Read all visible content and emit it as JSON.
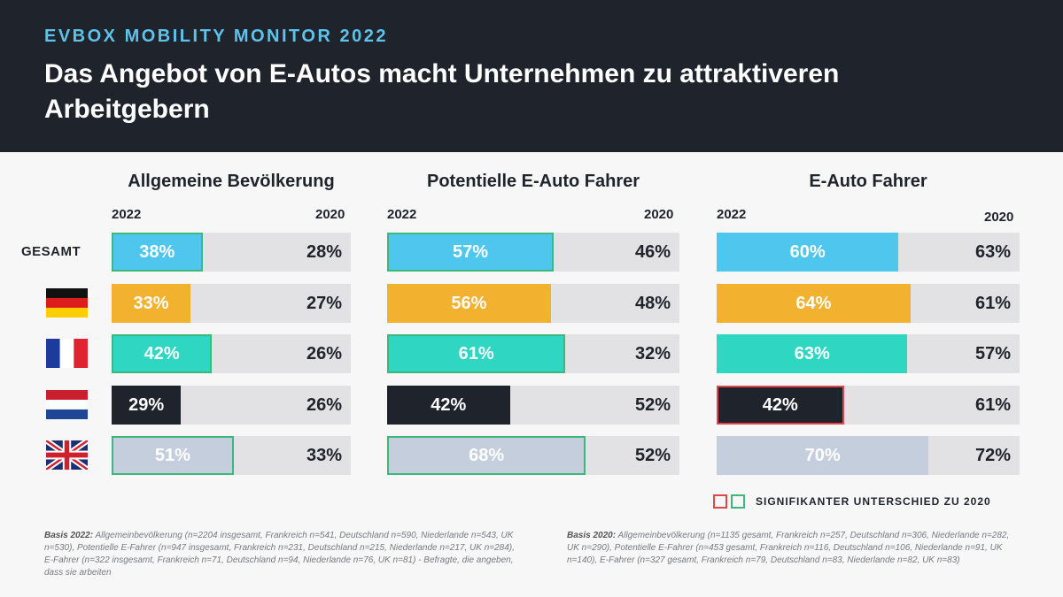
{
  "header": {
    "kicker": "EVBOX MOBILITY MONITOR 2022",
    "title": "Das Angebot von E-Autos macht Unternehmen zu attraktiveren Arbeitgebern"
  },
  "rows": [
    {
      "label": "GESAMT",
      "flag": null
    },
    {
      "label": "",
      "flag": "germany-flag-icon"
    },
    {
      "label": "",
      "flag": "france-flag-icon"
    },
    {
      "label": "",
      "flag": "netherlands-flag-icon"
    },
    {
      "label": "",
      "flag": "uk-flag-icon"
    }
  ],
  "chart_data": {
    "type": "bar",
    "orientation": "horizontal",
    "categories": [
      "GESAMT",
      "Deutschland",
      "Frankreich",
      "Niederlande",
      "UK"
    ],
    "year_current": "2022",
    "year_previous": "2020",
    "panels": [
      {
        "title": "Allgemeine Bevölkerung",
        "values_2022": [
          38,
          33,
          42,
          29,
          51
        ],
        "labels_2022": [
          "38%",
          "33%",
          "42%",
          "29%",
          "51%"
        ],
        "labels_2020": [
          "28%",
          "27%",
          "26%",
          "26%",
          "33%"
        ],
        "significant": [
          "green",
          "none",
          "green",
          "none",
          "green"
        ]
      },
      {
        "title": "Potentielle E-Auto Fahrer",
        "values_2022": [
          57,
          56,
          61,
          42,
          68
        ],
        "labels_2022": [
          "57%",
          "56%",
          "61%",
          "42%",
          "68%"
        ],
        "labels_2020": [
          "46%",
          "48%",
          "32%",
          "52%",
          "52%"
        ],
        "significant": [
          "green",
          "none",
          "green",
          "none",
          "green"
        ]
      },
      {
        "title": "E-Auto Fahrer",
        "values_2022": [
          60,
          64,
          63,
          42,
          70
        ],
        "labels_2022": [
          "60%",
          "64%",
          "63%",
          "42%",
          "70%"
        ],
        "labels_2020": [
          "63%",
          "61%",
          "57%",
          "61%",
          "72%"
        ],
        "significant": [
          "none",
          "none",
          "none",
          "red",
          "none"
        ]
      }
    ],
    "bar_colors": [
      "#4fc6ee",
      "#f2b22f",
      "#2fd7c2",
      "#1f232b",
      "#c5cedd"
    ],
    "bar_text_colors": [
      "#ffffff",
      "#ffffff",
      "#ffffff",
      "#ffffff",
      "#ffffff"
    ],
    "axis_max": 100
  },
  "legend": {
    "red_color": "#e0464a",
    "green_color": "#3db87a",
    "text": "SIGNIFIKANTER UNTERSCHIED ZU 2020"
  },
  "footnotes": {
    "left_bold": "Basis 2022:",
    "left_text": " Allgemeinbevölkerung (n=2204 insgesamt, Frankreich n=541, Deutschland n=590, Niederlande n=543, UK n=530), Potentielle E-Fahrer (n=947 insgesamt, Frankreich n=231, Deutschland n=215, Niederlande n=217, UK n=284), E-Fahrer (n=322 insgesamt, Frankreich n=71, Deutschland n=94, Niederlande n=76, UK n=81) - Befragte, die angeben, dass sie arbeiten",
    "right_bold": "Basis 2020:",
    "right_text": " Allgemeinbevölkerung (n=1135 gesamt, Frankreich n=257, Deutschland n=306, Niederlande n=282, UK n=290), Potentielle E-Fahrer (n=453 gesamt, Frankreich n=116, Deutschland n=106, Niederlande n=91, UK n=140), E-Fahrer (n=327 gesamt, Frankreich n=79, Deutschland n=83, Niederlande n=82, UK n=83)"
  }
}
